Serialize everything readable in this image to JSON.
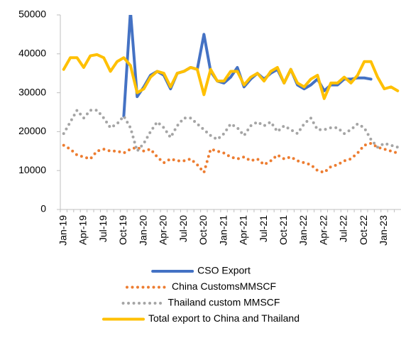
{
  "chart_data": {
    "type": "line",
    "categories": [
      "Jan-19",
      null,
      null,
      "Apr-19",
      null,
      null,
      "Jul-19",
      null,
      null,
      "Oct-19",
      null,
      null,
      "Jan-20",
      null,
      null,
      "Apr-20",
      null,
      null,
      "Jul-20",
      null,
      null,
      "Oct-20",
      null,
      null,
      "Jan-21",
      null,
      null,
      "Apr-21",
      null,
      null,
      "Jul-21",
      null,
      null,
      "Oct-21",
      null,
      null,
      "Jan-22",
      null,
      null,
      "Apr-22",
      null,
      null,
      "Jul-22",
      null,
      null,
      "Oct-22",
      null,
      null,
      "Jan-23",
      null,
      null
    ],
    "series": [
      {
        "name": "CSO Export",
        "color": "#4472c4",
        "style": "solid",
        "values": [
          null,
          null,
          null,
          null,
          null,
          null,
          null,
          null,
          null,
          24000,
          51000,
          29000,
          31500,
          34500,
          35500,
          34500,
          31000,
          35000,
          35500,
          36500,
          36000,
          45000,
          35500,
          33000,
          32500,
          34000,
          36500,
          31500,
          33500,
          35000,
          33500,
          35000,
          36000,
          32500,
          36000,
          32000,
          31000,
          32000,
          33500,
          30500,
          32000,
          32000,
          33500,
          33500,
          33800,
          33800,
          33500,
          null,
          null,
          null,
          null
        ]
      },
      {
        "name": "China CustomsMMSCF",
        "color": "#ed7d31",
        "style": "dotted",
        "values": [
          16500,
          15500,
          14000,
          13500,
          13000,
          15000,
          15500,
          15000,
          15000,
          14500,
          15500,
          16000,
          15000,
          15500,
          13500,
          12000,
          13000,
          12500,
          12500,
          13000,
          11500,
          9500,
          15500,
          15000,
          14500,
          13500,
          13000,
          13500,
          12500,
          13000,
          11500,
          12500,
          14000,
          13000,
          13500,
          12500,
          12000,
          11500,
          10000,
          9500,
          11000,
          11500,
          12500,
          13000,
          14500,
          16500,
          17000,
          16000,
          15500,
          15000,
          14500
        ]
      },
      {
        "name": "Thailand custom MMSCF",
        "color": "#a5a5a5",
        "style": "dotted",
        "values": [
          19500,
          22500,
          25500,
          23500,
          25500,
          25500,
          23500,
          21000,
          22000,
          24000,
          21000,
          15000,
          17000,
          20000,
          22500,
          21000,
          18500,
          21500,
          23500,
          23500,
          22000,
          20500,
          19000,
          18000,
          19500,
          22000,
          21000,
          19000,
          21500,
          22500,
          21500,
          22500,
          20000,
          21500,
          20500,
          19500,
          22000,
          23500,
          20500,
          20500,
          21000,
          21000,
          19500,
          20500,
          22000,
          21000,
          18000,
          16000,
          17000,
          16500,
          16000
        ]
      },
      {
        "name": "Total export to China and Thailand",
        "color": "#ffc000",
        "style": "solid",
        "values": [
          36000,
          39000,
          39000,
          36500,
          39500,
          39800,
          39000,
          35500,
          38000,
          39000,
          37000,
          30000,
          31000,
          34000,
          35500,
          35000,
          31500,
          35000,
          35500,
          36500,
          36000,
          29500,
          36000,
          33000,
          33000,
          35500,
          35500,
          32000,
          34000,
          35000,
          33000,
          35500,
          36500,
          32500,
          36000,
          32500,
          31500,
          33500,
          34500,
          28500,
          32500,
          32500,
          34000,
          32500,
          34500,
          38000,
          38000,
          34000,
          31000,
          31500,
          30500
        ]
      }
    ],
    "ylim": [
      0,
      50000
    ],
    "yticks": [
      0,
      10000,
      20000,
      30000,
      40000,
      50000
    ],
    "grid": false,
    "legend": "bottom"
  }
}
